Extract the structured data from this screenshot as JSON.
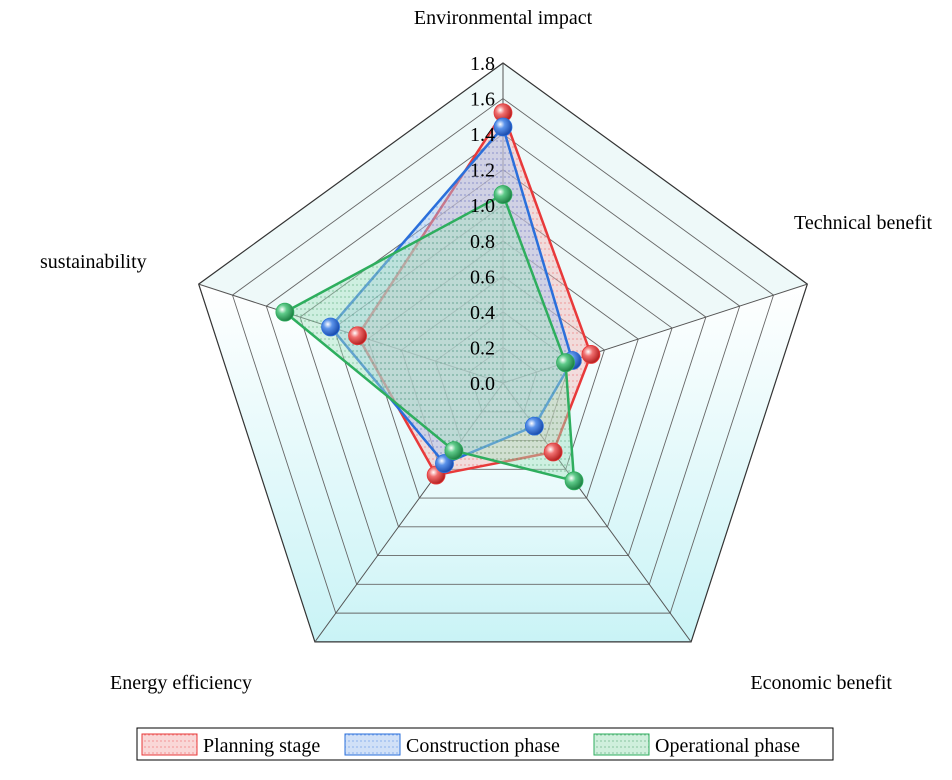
{
  "chart_data": {
    "type": "radar",
    "axes": [
      "Environmental impact",
      "Technical benefit",
      "Economic benefit",
      "Energy efficiency",
      "sustainability"
    ],
    "rlim": [
      0,
      1.8
    ],
    "ticks": [
      "0.0",
      "0.2",
      "0.4",
      "0.6",
      "0.8",
      "1.0",
      "1.2",
      "1.4",
      "1.6",
      "1.8"
    ],
    "grid": true,
    "legend_position": "bottom",
    "series": [
      {
        "name": "Planning stage",
        "values": [
          1.52,
          0.52,
          0.48,
          0.64,
          0.86
        ],
        "color": "#e8393a",
        "fill": "#f4b6b6"
      },
      {
        "name": "Construction phase",
        "values": [
          1.44,
          0.41,
          0.3,
          0.56,
          1.02
        ],
        "color": "#2a6fdb",
        "fill": "#a9c6f0"
      },
      {
        "name": "Operational phase",
        "values": [
          1.06,
          0.37,
          0.68,
          0.47,
          1.29
        ],
        "color": "#2eae5e",
        "fill": "#a7e2c0"
      }
    ]
  }
}
